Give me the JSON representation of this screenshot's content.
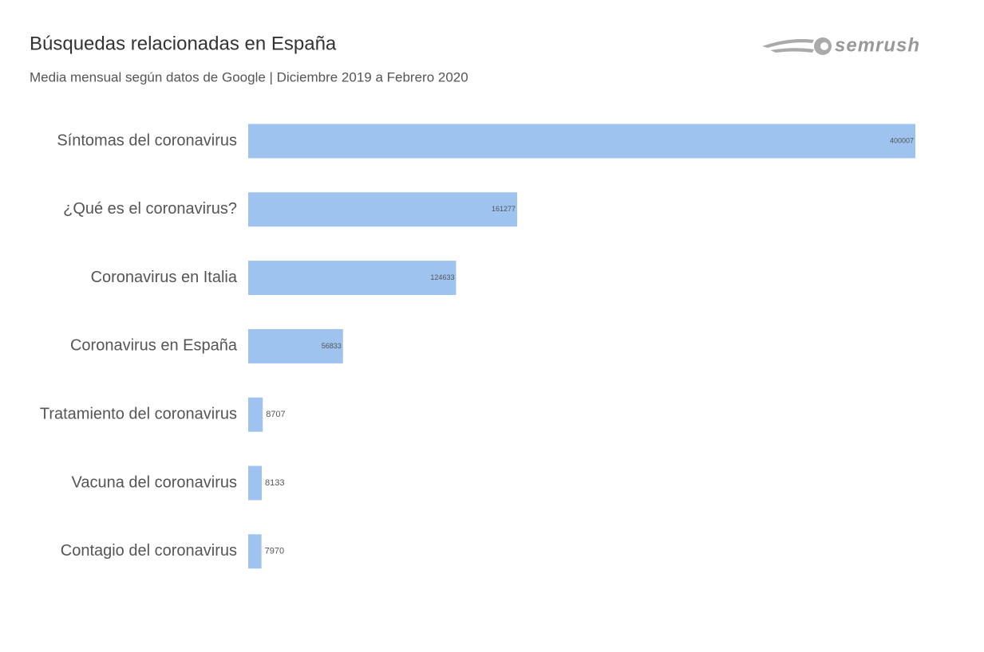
{
  "chart_data": {
    "type": "bar",
    "orientation": "horizontal",
    "title": "Búsquedas relacionadas en España",
    "subtitle": "Media mensual según datos de Google | Diciembre 2019 a Febrero 2020",
    "brand": "semrush",
    "categories": [
      "Síntomas del coronavirus",
      "¿Qué es el coronavirus?",
      "Coronavirus en Italia",
      "Coronavirus en España",
      "Tratamiento del coronavirus",
      "Vacuna del coronavirus",
      "Contagio del coronavirus"
    ],
    "values": [
      400007,
      161277,
      124633,
      56833,
      8707,
      8133,
      7970
    ],
    "color": "#9dc3ee"
  }
}
